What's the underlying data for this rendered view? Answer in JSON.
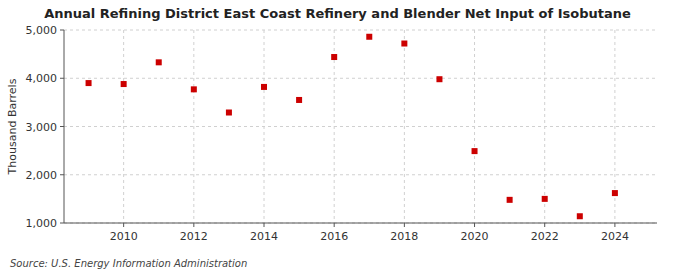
{
  "chart_data": {
    "type": "scatter",
    "title": "Annual Refining District East Coast Refinery and Blender Net Input of Isobutane",
    "ylabel": "Thousand Barrels",
    "source": "Source: U.S. Energy Information Administration",
    "x": [
      2009,
      2010,
      2011,
      2012,
      2013,
      2014,
      2015,
      2016,
      2017,
      2018,
      2019,
      2020,
      2021,
      2022,
      2023,
      2024
    ],
    "values": [
      3900,
      3880,
      4330,
      3770,
      3290,
      3820,
      3550,
      4440,
      4860,
      4720,
      3980,
      2490,
      1480,
      1500,
      1140,
      1620
    ],
    "color": "#cc0000",
    "marker": "square",
    "xlim": [
      2008.3,
      2025.2
    ],
    "xticks": [
      2010,
      2012,
      2014,
      2016,
      2018,
      2020,
      2022,
      2024
    ],
    "ylim": [
      1000,
      5000
    ],
    "yticks": [
      {
        "value": 1000,
        "label": "1,000"
      },
      {
        "value": 2000,
        "label": "2,000"
      },
      {
        "value": 3000,
        "label": "3,000"
      },
      {
        "value": 4000,
        "label": "4,000"
      },
      {
        "value": 5000,
        "label": "5,000"
      }
    ],
    "grid": true
  }
}
